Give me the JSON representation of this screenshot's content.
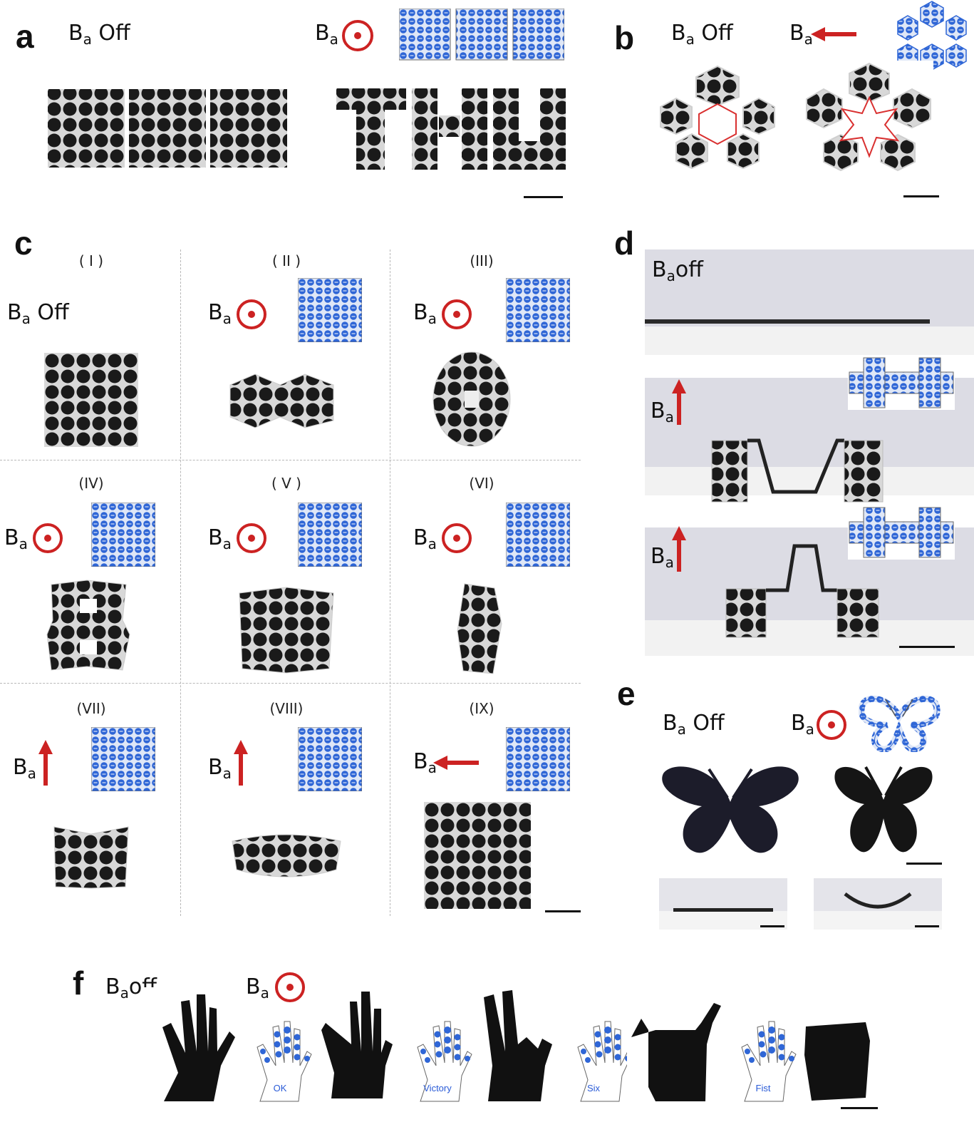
{
  "panels": {
    "a": {
      "label": "a",
      "off": "Off"
    },
    "b": {
      "label": "b",
      "off": "Off"
    },
    "c": {
      "label": "c",
      "off": "Off",
      "cells": [
        "( I )",
        "( II )",
        "(III)",
        "(IV)",
        "( V )",
        "(VI)",
        "(VII)",
        "(VIII)",
        "(IX)"
      ]
    },
    "d": {
      "label": "d",
      "off": "off"
    },
    "e": {
      "label": "e",
      "off": "Off"
    },
    "f": {
      "label": "f",
      "off": "off",
      "hands": [
        "OK",
        "Victory",
        "Six",
        "Fist"
      ]
    }
  },
  "field_symbol": {
    "letter": "B",
    "sub": "a"
  },
  "colors": {
    "field_red": "#cc2222",
    "schematic_blue": "#2f66d6",
    "highlight_red": "#d93030",
    "dark": "#151515"
  },
  "icons": [
    "out-of-plane-field-icon",
    "up-arrow-field-icon",
    "left-arrow-field-icon"
  ]
}
